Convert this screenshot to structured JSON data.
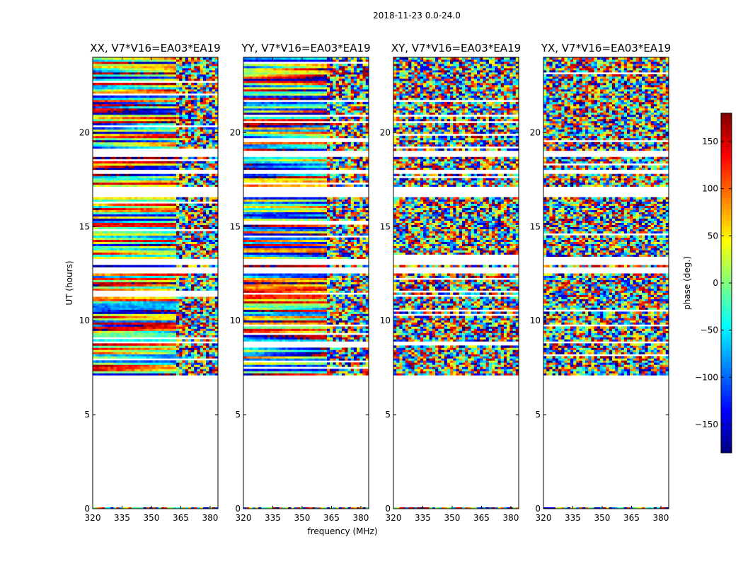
{
  "figure": {
    "suptitle": "2018-11-23 0.0-24.0"
  },
  "chart_data": {
    "type": "heatmap",
    "suptitle": "2018-11-23 0.0-24.0",
    "xlabel": "frequency (MHz)",
    "ylabel": "UT (hours)",
    "xlim": [
      320,
      384
    ],
    "ylim": [
      0,
      24
    ],
    "x_ticks": [
      320,
      335,
      350,
      365,
      380
    ],
    "y_ticks": [
      0,
      5,
      10,
      15,
      20
    ],
    "y_tick_labels": [
      "0",
      "5",
      "10",
      "15",
      "20"
    ],
    "panels": [
      {
        "title": "XX, V7*V16=EA03*EA19",
        "polarization": "XX"
      },
      {
        "title": "YY, V7*V16=EA03*EA19",
        "polarization": "YY"
      },
      {
        "title": "XY, V7*V16=EA03*EA19",
        "polarization": "XY"
      },
      {
        "title": "YX, V7*V16=EA03*EA19",
        "polarization": "YX"
      }
    ],
    "data_time_range_hours": [
      7.1,
      24.0
    ],
    "gaps_hours": [
      [
        12.5,
        12.85
      ],
      [
        13.0,
        13.3
      ],
      [
        16.6,
        17.1
      ],
      [
        17.8,
        18.0
      ],
      [
        18.7,
        19.0
      ],
      [
        8.75,
        8.95
      ]
    ],
    "smooth_fringe_freq_range_mhz": [
      320,
      362
    ],
    "colorbar": {
      "label": "phase (deg.)",
      "range": [
        -180,
        180
      ],
      "ticks": [
        -150,
        -100,
        -50,
        0,
        50,
        100,
        150
      ],
      "tick_labels": [
        "−150",
        "−100",
        "−50",
        "0",
        "50",
        "100",
        "150"
      ],
      "colormap": "jet"
    }
  }
}
